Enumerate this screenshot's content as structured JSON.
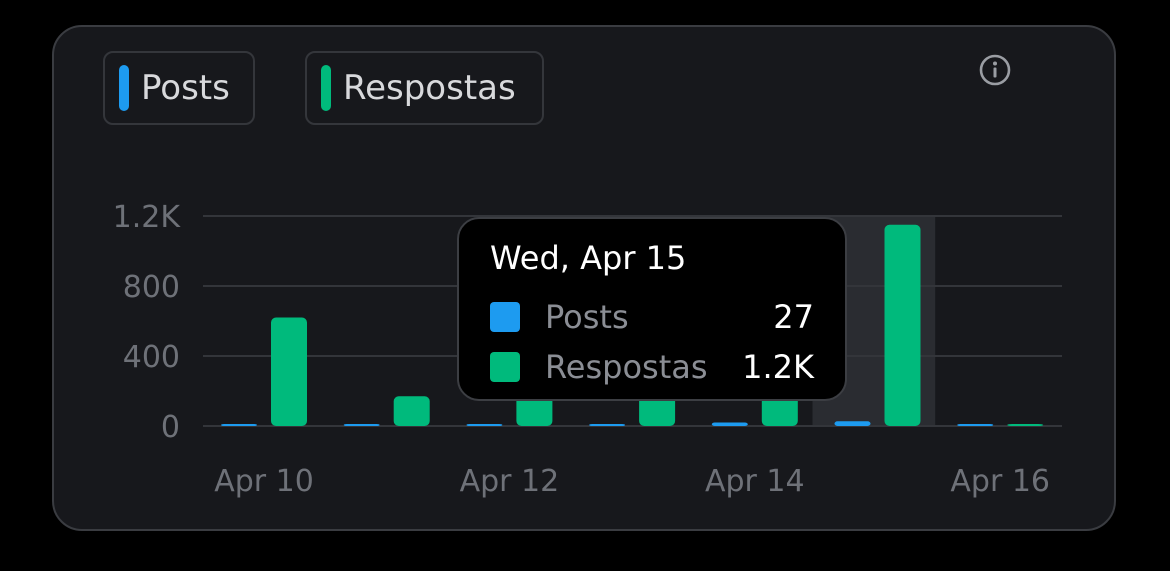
{
  "legend": [
    {
      "label": "Posts",
      "color": "#1d9bf0"
    },
    {
      "label": "Respostas",
      "color": "#00ba7c"
    }
  ],
  "info_icon": "info-circle-icon",
  "tooltip": {
    "title": "Wed, Apr 15",
    "rows": [
      {
        "name": "Posts",
        "value": "27",
        "color": "#1d9bf0"
      },
      {
        "name": "Respostas",
        "value": "1.2K",
        "color": "#00ba7c"
      }
    ]
  },
  "chart_data": {
    "type": "bar",
    "categories": [
      "Apr 10",
      "Apr 11",
      "Apr 12",
      "Apr 13",
      "Apr 14",
      "Apr 15",
      "Apr 16"
    ],
    "x_tick_labels": [
      "Apr 10",
      "Apr 12",
      "Apr 14",
      "Apr 16"
    ],
    "series": [
      {
        "name": "Posts",
        "color": "#1d9bf0",
        "values": [
          5,
          4,
          10,
          10,
          20,
          27,
          0
        ]
      },
      {
        "name": "Respostas",
        "color": "#00ba7c",
        "values": [
          620,
          170,
          180,
          190,
          200,
          1150,
          3
        ]
      }
    ],
    "yticks": [
      0,
      400,
      800,
      1200
    ],
    "ytick_labels": [
      "0",
      "400",
      "800",
      "1.2K"
    ],
    "ylim": [
      0,
      1200
    ],
    "highlighted": "Apr 15",
    "grid": true,
    "legend_position": "top-left"
  }
}
